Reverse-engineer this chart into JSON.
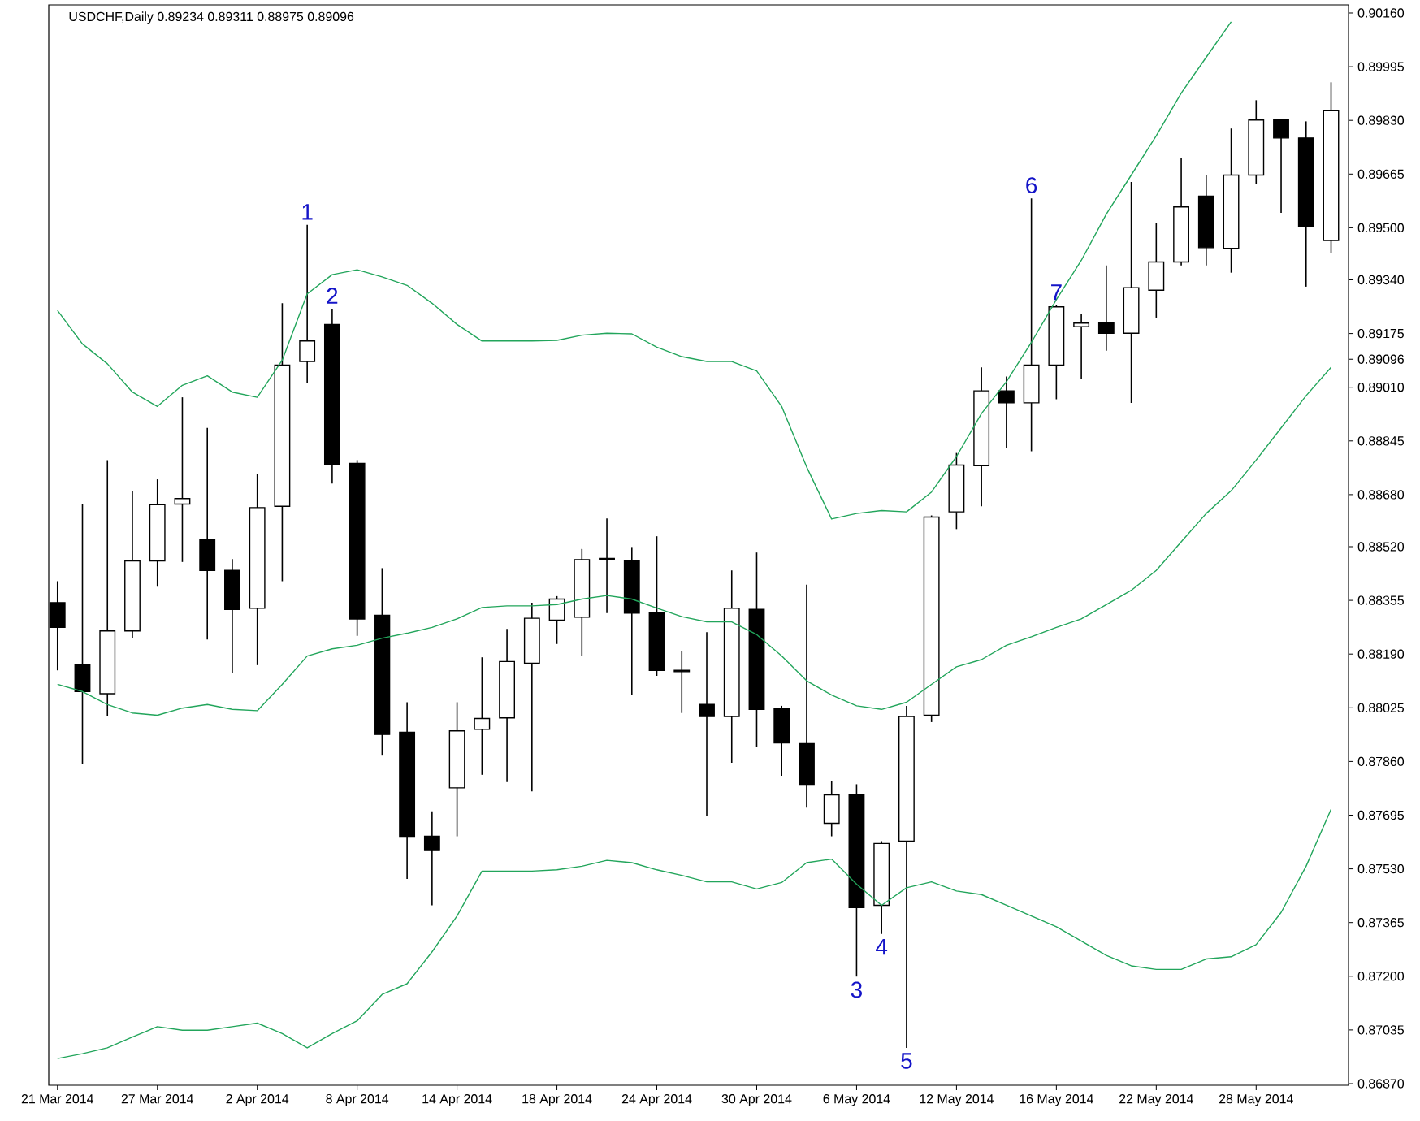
{
  "chart_data": {
    "type": "candlestick",
    "title": "USDCHF,Daily 0.89234 0.89311 0.88975 0.89096",
    "color": "#000000",
    "categories": [
      "21 Mar 2014",
      null,
      null,
      null,
      "27 Mar 2014",
      null,
      null,
      null,
      "2 Apr 2014",
      null,
      null,
      null,
      "8 Apr 2014",
      null,
      null,
      null,
      "14 Apr 2014",
      null,
      null,
      null,
      "18 Apr 2014",
      null,
      null,
      null,
      "24 Apr 2014",
      null,
      null,
      null,
      "30 Apr 2014",
      null,
      null,
      null,
      "6 May 2014",
      null,
      null,
      null,
      "12 May 2014",
      null,
      null,
      null,
      "16 May 2014",
      null,
      null,
      null,
      "22 May 2014",
      null,
      null,
      null,
      "28 May 2014",
      null,
      null,
      null
    ],
    "ohlc": [
      [
        0.88348,
        0.88414,
        0.8814,
        0.88272
      ],
      [
        0.88158,
        0.88651,
        0.87851,
        0.88075
      ],
      [
        0.88068,
        0.88786,
        0.87998,
        0.88261
      ],
      [
        0.88261,
        0.88692,
        0.88239,
        0.88476
      ],
      [
        0.88476,
        0.88727,
        0.88397,
        0.88649
      ],
      [
        0.88651,
        0.88979,
        0.88473,
        0.88668
      ],
      [
        0.88541,
        0.88885,
        0.88235,
        0.88447
      ],
      [
        0.88447,
        0.88482,
        0.88132,
        0.88327
      ],
      [
        0.88331,
        0.88743,
        0.88156,
        0.8864
      ],
      [
        0.88644,
        0.89268,
        0.88414,
        0.89078
      ],
      [
        0.89089,
        0.89509,
        0.89023,
        0.89152
      ],
      [
        0.89203,
        0.89251,
        0.88714,
        0.88773
      ],
      [
        0.88776,
        0.88786,
        0.88246,
        0.88298
      ],
      [
        0.88309,
        0.88454,
        0.87878,
        0.87943
      ],
      [
        0.8795,
        0.88042,
        0.87499,
        0.8763
      ],
      [
        0.8763,
        0.87707,
        0.87418,
        0.87586
      ],
      [
        0.87779,
        0.88042,
        0.8763,
        0.87954
      ],
      [
        0.87959,
        0.8818,
        0.87819,
        0.87992
      ],
      [
        0.87994,
        0.88267,
        0.87797,
        0.88167
      ],
      [
        0.88162,
        0.88348,
        0.87768,
        0.883
      ],
      [
        0.88294,
        0.88368,
        0.88221,
        0.88359
      ],
      [
        0.88303,
        0.88513,
        0.88184,
        0.8848
      ],
      [
        0.88484,
        0.88607,
        0.88316,
        0.8848
      ],
      [
        0.88476,
        0.88519,
        0.88064,
        0.88316
      ],
      [
        0.88316,
        0.88552,
        0.88123,
        0.8814
      ],
      [
        0.8814,
        0.882,
        0.88009,
        0.88136
      ],
      [
        0.88035,
        0.88257,
        0.87691,
        0.87998
      ],
      [
        0.87998,
        0.88447,
        0.87856,
        0.88331
      ],
      [
        0.88327,
        0.88502,
        0.87904,
        0.8802
      ],
      [
        0.88024,
        0.88031,
        0.87816,
        0.87917
      ],
      [
        0.87915,
        0.88403,
        0.87718,
        0.8779
      ],
      [
        0.8767,
        0.87801,
        0.8763,
        0.87757
      ],
      [
        0.87757,
        0.8779,
        0.87199,
        0.87411
      ],
      [
        0.87418,
        0.87615,
        0.8733,
        0.87608
      ],
      [
        0.87615,
        0.88031,
        0.8698,
        0.87998
      ],
      [
        0.88002,
        0.88616,
        0.87981,
        0.88611
      ],
      [
        0.88627,
        0.88808,
        0.88574,
        0.88771
      ],
      [
        0.88769,
        0.89071,
        0.88644,
        0.88999
      ],
      [
        0.88999,
        0.89043,
        0.88824,
        0.88962
      ],
      [
        0.88962,
        0.8959,
        0.88813,
        0.89078
      ],
      [
        0.89078,
        0.89262,
        0.88973,
        0.89257
      ],
      [
        0.89196,
        0.89235,
        0.89034,
        0.89207
      ],
      [
        0.89207,
        0.89384,
        0.89122,
        0.89176
      ],
      [
        0.89176,
        0.89641,
        0.88962,
        0.89316
      ],
      [
        0.89308,
        0.89514,
        0.89224,
        0.89395
      ],
      [
        0.89395,
        0.89713,
        0.89384,
        0.89564
      ],
      [
        0.89597,
        0.89662,
        0.89384,
        0.89439
      ],
      [
        0.89437,
        0.89805,
        0.89362,
        0.89662
      ],
      [
        0.89662,
        0.89892,
        0.89634,
        0.89831
      ],
      [
        0.89831,
        0.89831,
        0.89546,
        0.89776
      ],
      [
        0.89776,
        0.89827,
        0.89319,
        0.89505
      ],
      [
        0.89461,
        0.89947,
        0.89422,
        0.8986
      ]
    ],
    "series": [
      {
        "type": "line",
        "color": "#22a55b",
        "values": [
          0.89246,
          0.89143,
          0.89082,
          0.88995,
          0.88951,
          0.89016,
          0.89045,
          0.88995,
          0.88979,
          0.89093,
          0.89297,
          0.89356,
          0.89371,
          0.89349,
          0.89323,
          0.89268,
          0.89203,
          0.89152,
          0.89152,
          0.89152,
          0.89154,
          0.8917,
          0.89176,
          0.89174,
          0.89133,
          0.89104,
          0.89089,
          0.89089,
          0.8906,
          0.88951,
          0.88765,
          0.88605,
          0.88622,
          0.88631,
          0.88627,
          0.88688,
          0.88797,
          0.88929,
          0.89027,
          0.89148,
          0.89279,
          0.894,
          0.89542,
          0.89662,
          0.89783,
          0.89914,
          0.90024,
          0.90133,
          null,
          null,
          null,
          null
        ]
      },
      {
        "type": "line",
        "color": "#22a55b",
        "values": [
          0.88097,
          0.88075,
          0.88035,
          0.88009,
          0.88002,
          0.88024,
          0.88035,
          0.8802,
          0.88016,
          0.88097,
          0.88184,
          0.88206,
          0.88217,
          0.88239,
          0.88254,
          0.88272,
          0.88298,
          0.88333,
          0.88338,
          0.88338,
          0.88342,
          0.88359,
          0.8837,
          0.88359,
          0.88331,
          0.88305,
          0.88289,
          0.88289,
          0.8825,
          0.88184,
          0.88108,
          0.88064,
          0.88031,
          0.8802,
          0.88042,
          0.88097,
          0.88151,
          0.88173,
          0.88217,
          0.88243,
          0.88272,
          0.88298,
          0.88342,
          0.88386,
          0.88447,
          0.88535,
          0.88622,
          0.88692,
          0.88786,
          0.88885,
          0.88984,
          0.89071
        ]
      },
      {
        "type": "line",
        "color": "#22a55b",
        "values": [
          0.86947,
          0.86962,
          0.8698,
          0.87013,
          0.87045,
          0.87034,
          0.87034,
          0.87045,
          0.87056,
          0.87024,
          0.8698,
          0.87024,
          0.87063,
          0.87144,
          0.87177,
          0.87275,
          0.87385,
          0.87523,
          0.87523,
          0.87523,
          0.87527,
          0.87538,
          0.87556,
          0.87549,
          0.87527,
          0.8751,
          0.8749,
          0.8749,
          0.87468,
          0.87488,
          0.87549,
          0.8756,
          0.87483,
          0.87418,
          0.87472,
          0.8749,
          0.87462,
          0.87451,
          0.87418,
          0.87385,
          0.87352,
          0.87308,
          0.87264,
          0.87232,
          0.87221,
          0.87221,
          0.87253,
          0.8726,
          0.87297,
          0.87396,
          0.87538,
          0.87713
        ]
      }
    ],
    "ylim": [
      0.86865,
      0.90185
    ],
    "yticks": [
      {
        "value": 0.9016,
        "label": "0.90160"
      },
      {
        "value": 0.89995,
        "label": "0.89995"
      },
      {
        "value": 0.8983,
        "label": "0.89830"
      },
      {
        "value": 0.89665,
        "label": "0.89665"
      },
      {
        "value": 0.895,
        "label": "0.89500"
      },
      {
        "value": 0.8934,
        "label": "0.89340"
      },
      {
        "value": 0.89175,
        "label": "0.89175"
      },
      {
        "value": 0.89096,
        "label": "0.89096"
      },
      {
        "value": 0.8901,
        "label": "0.89010"
      },
      {
        "value": 0.88845,
        "label": "0.88845"
      },
      {
        "value": 0.8868,
        "label": "0.88680"
      },
      {
        "value": 0.8852,
        "label": "0.88520"
      },
      {
        "value": 0.88355,
        "label": "0.88355"
      },
      {
        "value": 0.8819,
        "label": "0.88190"
      },
      {
        "value": 0.88025,
        "label": "0.88025"
      },
      {
        "value": 0.8786,
        "label": "0.87860"
      },
      {
        "value": 0.87695,
        "label": "0.87695"
      },
      {
        "value": 0.8753,
        "label": "0.87530"
      },
      {
        "value": 0.87365,
        "label": "0.87365"
      },
      {
        "value": 0.872,
        "label": "0.87200"
      },
      {
        "value": 0.87035,
        "label": "0.87035"
      },
      {
        "value": 0.8687,
        "label": "0.86870"
      }
    ],
    "annotations": [
      {
        "text": "1",
        "y": 0.89509
      },
      {
        "text": "2",
        "y": 0.89251
      },
      {
        "text": "3",
        "x": "6 May 2014",
        "y": 0.87199
      },
      {
        "text": "4",
        "y": 0.8733
      },
      {
        "text": "5",
        "y": 0.8698
      },
      {
        "text": "6",
        "y": 0.8959
      },
      {
        "text": "7",
        "y": 0.89262
      }
    ]
  }
}
